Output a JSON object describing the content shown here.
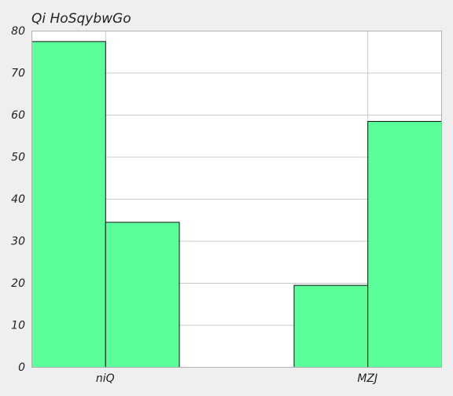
{
  "chart_data": {
    "type": "bar",
    "title": "Qi HoSqybwGo",
    "xlabel": "",
    "ylabel": "",
    "categories": [
      "niQ",
      "MZJ"
    ],
    "series": [
      {
        "values": [
          77.5,
          19.5
        ]
      },
      {
        "values": [
          34.5,
          58.5
        ]
      }
    ],
    "ylim": [
      0,
      80
    ],
    "yticks": [
      0,
      10,
      20,
      30,
      40,
      50,
      60,
      70,
      80
    ],
    "grid": true,
    "legend": "none",
    "colors": {
      "bar_fill": "#5bff99",
      "bar_stroke": "#111111",
      "grid": "#c8c8c8",
      "plot_bg": "#ffffff",
      "page_bg": "#efefef",
      "axis": "#b0b0b0",
      "text": "#222222"
    }
  }
}
